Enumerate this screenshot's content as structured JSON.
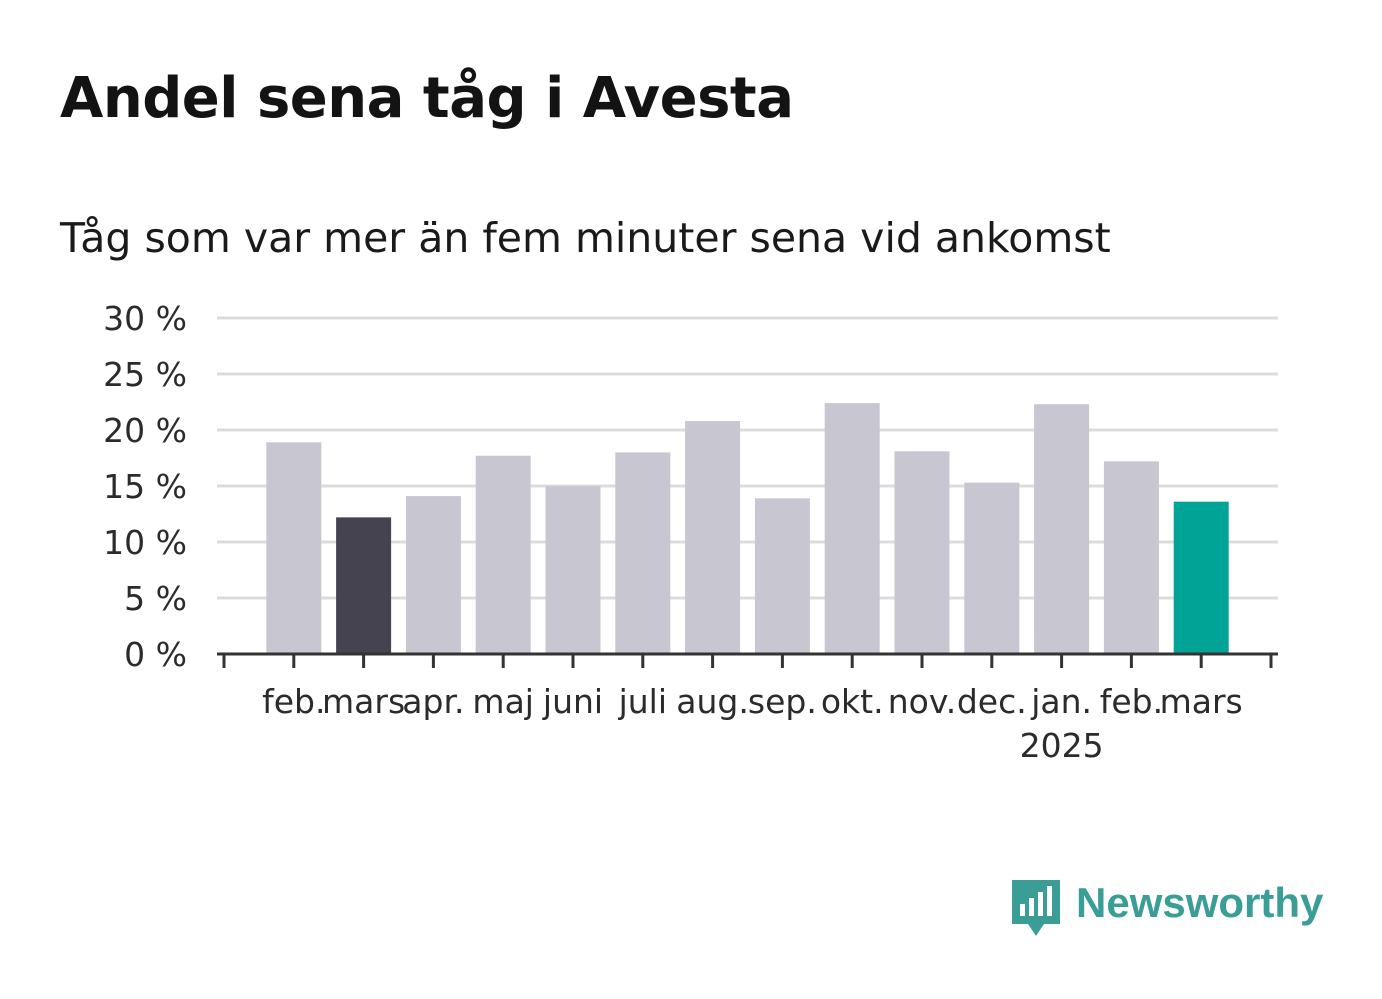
{
  "title": "Andel sena tåg i Avesta",
  "subtitle": "Tåg som var mer än fem minuter sena vid ankomst",
  "brand": {
    "name": "Newsworthy",
    "icon": "newsworthy-logo-icon",
    "color": "#3a9d96"
  },
  "colors": {
    "default_bar": "#c8c7d1",
    "previous_year_bar": "#45434f",
    "current_bar": "#00a497",
    "grid": "#dcdcdc",
    "axis": "#333333"
  },
  "chart_data": {
    "type": "bar",
    "categories": [
      "feb.",
      "mars",
      "apr.",
      "maj",
      "juni",
      "juli",
      "aug.",
      "sep.",
      "okt.",
      "nov.",
      "dec.",
      "jan.",
      "feb.",
      "mars"
    ],
    "category_sublabels": [
      "",
      "",
      "",
      "",
      "",
      "",
      "",
      "",
      "",
      "",
      "",
      "2025",
      "",
      ""
    ],
    "values": [
      18.9,
      12.2,
      14.1,
      17.7,
      15.0,
      18.0,
      20.8,
      13.9,
      22.4,
      18.1,
      15.3,
      22.3,
      17.2,
      13.6
    ],
    "highlight": {
      "previous_year_index": 1,
      "current_index": 13
    },
    "ylim": [
      0,
      30
    ],
    "yticks": [
      0,
      5,
      10,
      15,
      20,
      25,
      30
    ],
    "ytick_labels": [
      "0 %",
      "5 %",
      "10 %",
      "15 %",
      "20 %",
      "25 %",
      "30 %"
    ],
    "xlabel": "",
    "ylabel": "",
    "grid": true,
    "legend": "none"
  }
}
